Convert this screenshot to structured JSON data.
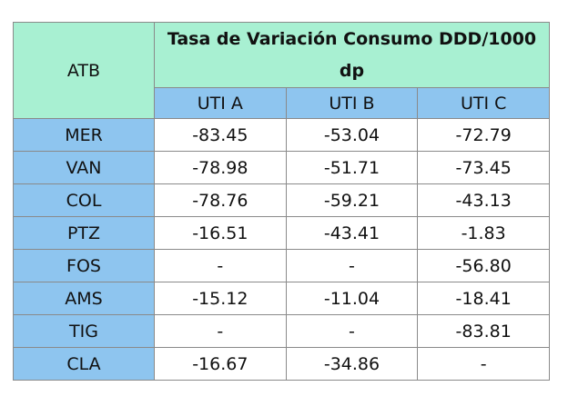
{
  "table": {
    "row_header": "ATB",
    "title": "Tasa de Variación Consumo DDD/1000 dp",
    "columns": [
      "UTI A",
      "UTI B",
      "UTI C"
    ],
    "rows": [
      {
        "label": "MER",
        "values": [
          "-83.45",
          "-53.04",
          "-72.79"
        ]
      },
      {
        "label": "VAN",
        "values": [
          "-78.98",
          "-51.71",
          "-73.45"
        ]
      },
      {
        "label": "COL",
        "values": [
          "-78.76",
          "-59.21",
          "-43.13"
        ]
      },
      {
        "label": "PTZ",
        "values": [
          "-16.51",
          "-43.41",
          "-1.83"
        ]
      },
      {
        "label": "FOS",
        "values": [
          "-",
          "-",
          "-56.80"
        ]
      },
      {
        "label": "AMS",
        "values": [
          "-15.12",
          "-11.04",
          "-18.41"
        ]
      },
      {
        "label": "TIG",
        "values": [
          "-",
          "-",
          "-83.81"
        ]
      },
      {
        "label": "CLA",
        "values": [
          "-16.67",
          "-34.86",
          "-"
        ]
      }
    ]
  }
}
